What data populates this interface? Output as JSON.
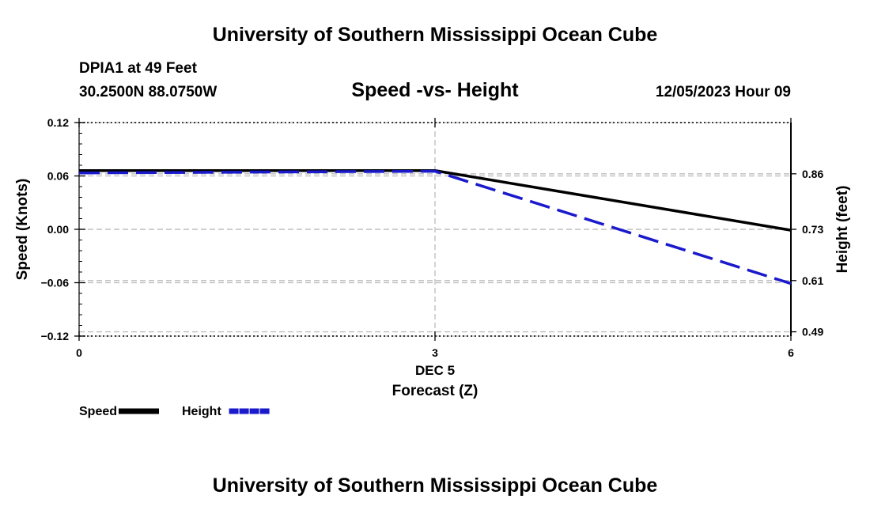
{
  "header": {
    "top_title": "University of Southern Mississippi Ocean Cube",
    "station": "DPIA1 at 49 Feet",
    "coords": "30.2500N  88.0750W",
    "chart_title": "Speed -vs- Height",
    "datetime": "12/05/2023 Hour 09",
    "bottom_title": "University of Southern Mississippi Ocean Cube"
  },
  "chart_data": {
    "type": "line",
    "title": "Speed -vs- Height",
    "xlabel": "Forecast (Z)",
    "xsublabel": "DEC 5",
    "ylabel": "Speed (Knots)",
    "y2label": "Height (feet)",
    "x": [
      0,
      3,
      6
    ],
    "xlim": [
      0,
      6
    ],
    "ylim": [
      -0.12,
      0.12
    ],
    "y2lim": [
      0.48,
      0.98
    ],
    "x_ticks": [
      "0",
      "3",
      "6"
    ],
    "y_ticks": [
      "0.12",
      "0.06",
      "0.00",
      "−0.06",
      "−0.12"
    ],
    "y_tick_values": [
      0.12,
      0.06,
      0.0,
      -0.06,
      -0.12
    ],
    "y2_ticks": [
      "0.86",
      "0.73",
      "0.61",
      "0.49"
    ],
    "y2_tick_values": [
      0.86,
      0.73,
      0.61,
      0.49
    ],
    "series": [
      {
        "name": "Speed",
        "axis": "left",
        "color": "#000000",
        "style": "solid",
        "values": [
          0.066,
          0.066,
          -0.001
        ]
      },
      {
        "name": "Height",
        "axis": "right",
        "color": "#1a1acc",
        "style": "dashed",
        "values": [
          0.862,
          0.866,
          0.603
        ]
      }
    ],
    "legend": [
      {
        "label": "Speed",
        "color": "#000000"
      },
      {
        "label": "Height",
        "color": "#1a1acc"
      }
    ],
    "grid": true
  }
}
